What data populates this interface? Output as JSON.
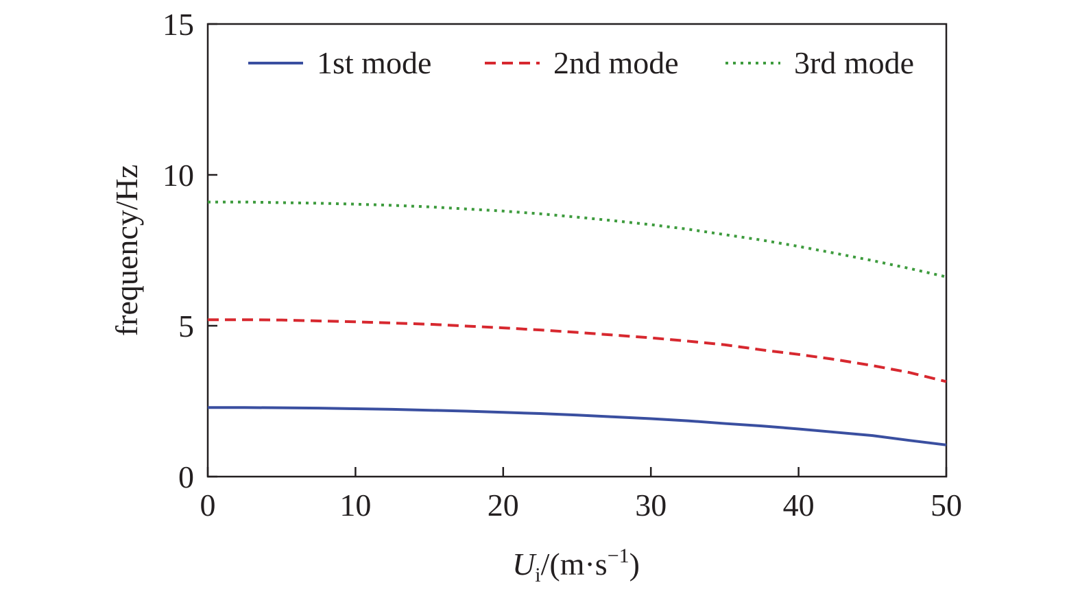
{
  "chart_data": {
    "type": "line",
    "x": [
      0,
      2.5,
      5,
      7.5,
      10,
      12.5,
      15,
      17.5,
      20,
      22.5,
      25,
      27.5,
      30,
      32.5,
      35,
      37.5,
      40,
      42.5,
      45,
      47.5,
      50
    ],
    "series": [
      {
        "name": "1st mode",
        "color": "#3a4fa0",
        "style": "solid",
        "values": [
          2.29,
          2.29,
          2.28,
          2.27,
          2.25,
          2.23,
          2.2,
          2.17,
          2.13,
          2.09,
          2.04,
          1.98,
          1.92,
          1.85,
          1.76,
          1.68,
          1.58,
          1.47,
          1.36,
          1.2,
          1.05
        ]
      },
      {
        "name": "2nd mode",
        "color": "#d7282f",
        "style": "dashed",
        "values": [
          5.2,
          5.2,
          5.19,
          5.16,
          5.13,
          5.09,
          5.05,
          4.99,
          4.93,
          4.86,
          4.78,
          4.69,
          4.6,
          4.49,
          4.37,
          4.2,
          4.05,
          3.88,
          3.68,
          3.45,
          3.15
        ]
      },
      {
        "name": "3rd mode",
        "color": "#3d9b3d",
        "style": "dotted",
        "values": [
          9.1,
          9.1,
          9.08,
          9.06,
          9.03,
          8.99,
          8.94,
          8.87,
          8.8,
          8.71,
          8.6,
          8.48,
          8.35,
          8.2,
          8.02,
          7.84,
          7.63,
          7.4,
          7.16,
          6.9,
          6.62
        ]
      }
    ],
    "xlabel": {
      "main": "U",
      "subscript": "i",
      "unit_prefix": "/(m·s",
      "superscript": "−1",
      "unit_suffix": ")"
    },
    "ylabel": "frequency/Hz",
    "xlim": [
      0,
      50
    ],
    "ylim": [
      0,
      15
    ],
    "xticks": [
      0,
      10,
      20,
      30,
      40,
      50
    ],
    "yticks": [
      0,
      5,
      10,
      15
    ],
    "grid": false,
    "legend_position": "top"
  }
}
